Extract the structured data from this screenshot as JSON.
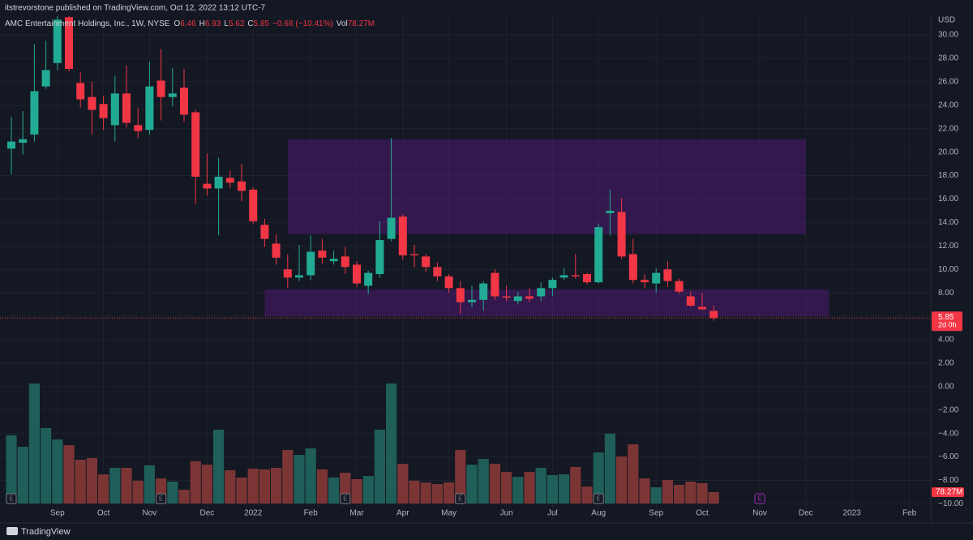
{
  "chart_data": {
    "type": "candlestick",
    "published": "itstrevorstone published on TradingView.com, Oct 12, 2022 13:12 UTC-7",
    "title": "AMC Entertainment Holdings, Inc., 1W, NYSE",
    "quote": {
      "o": "O",
      "h": "H",
      "l": "L",
      "c": "C",
      "change": "−0.68",
      "change_pct": "(−10.41%)",
      "vol": "Vol"
    },
    "currency": "USD",
    "countdown": "2d 0h",
    "brand": "TradingView",
    "categories": [
      null,
      null,
      null,
      null,
      "Sep",
      null,
      null,
      null,
      "Oct",
      null,
      null,
      null,
      "Nov",
      null,
      null,
      null,
      null,
      "Dec",
      null,
      null,
      null,
      "2022",
      null,
      null,
      null,
      null,
      "Feb",
      null,
      null,
      null,
      "Mar",
      null,
      null,
      null,
      "Apr",
      null,
      null,
      null,
      "May",
      null,
      null,
      null,
      null,
      "Jun",
      null,
      null,
      null,
      "Jul",
      null,
      null,
      null,
      "Aug",
      null,
      null,
      null,
      null,
      "Sep",
      null,
      null,
      null,
      "Oct",
      null,
      null,
      null,
      null,
      "Nov",
      null,
      null,
      null,
      "Dec",
      null,
      null,
      null,
      "2023",
      null,
      null,
      null,
      null,
      "Feb",
      null
    ],
    "open": [
      20.3,
      20.8,
      21.5,
      25.6,
      27.6,
      31.5,
      25.9,
      24.7,
      24.1,
      22.3,
      25.0,
      22.3,
      21.9,
      26.1,
      24.7,
      25.5,
      23.4,
      17.3,
      16.9,
      17.8,
      17.5,
      16.8,
      13.8,
      12.2,
      10.0,
      9.3,
      9.5,
      11.6,
      10.7,
      11.1,
      10.4,
      8.6,
      9.6,
      12.6,
      14.5,
      11.3,
      11.1,
      10.2,
      9.4,
      8.4,
      7.2,
      7.4,
      9.7,
      7.7,
      7.3,
      7.7,
      7.7,
      8.4,
      9.3,
      9.5,
      9.6,
      8.9,
      14.8,
      14.9,
      11.3,
      9.1,
      8.8,
      10.0,
      9.0,
      7.7,
      6.8,
      6.46,
      null,
      null,
      null,
      null,
      null,
      null,
      null,
      null,
      null,
      null,
      null,
      null,
      null,
      null,
      null,
      null,
      null,
      null
    ],
    "high": [
      23.0,
      23.5,
      29.2,
      29.5,
      31.6,
      31.6,
      26.8,
      26.0,
      24.8,
      26.5,
      27.4,
      23.8,
      27.7,
      28.8,
      27.2,
      27.1,
      23.6,
      19.9,
      19.5,
      18.4,
      19.0,
      17.0,
      14.3,
      13.0,
      11.3,
      12.1,
      12.9,
      12.6,
      11.6,
      11.9,
      10.7,
      9.9,
      14.1,
      21.2,
      14.7,
      12.1,
      11.3,
      10.6,
      9.6,
      9.0,
      8.6,
      9.0,
      10.0,
      8.6,
      8.1,
      8.4,
      8.9,
      9.3,
      10.1,
      11.3,
      9.7,
      13.9,
      16.8,
      16.1,
      12.6,
      9.6,
      10.1,
      10.7,
      9.2,
      8.1,
      8.0,
      6.93,
      null,
      null,
      null,
      null,
      null,
      null,
      null,
      null,
      null,
      null,
      null,
      null,
      null,
      null,
      null,
      null,
      null,
      null
    ],
    "low": [
      18.1,
      19.8,
      20.9,
      25.4,
      27.0,
      26.9,
      23.8,
      21.5,
      21.9,
      20.9,
      22.1,
      21.2,
      21.5,
      22.7,
      23.9,
      22.6,
      15.6,
      16.3,
      12.9,
      16.9,
      15.8,
      13.9,
      11.9,
      10.4,
      8.4,
      9.0,
      9.1,
      10.5,
      10.4,
      9.6,
      8.5,
      7.9,
      9.3,
      12.4,
      10.8,
      10.2,
      9.8,
      9.0,
      8.0,
      6.2,
      6.8,
      6.5,
      7.4,
      7.3,
      7.0,
      7.2,
      7.3,
      7.7,
      9.1,
      9.2,
      8.7,
      8.8,
      12.9,
      10.9,
      8.8,
      8.4,
      8.0,
      8.5,
      7.9,
      6.8,
      6.5,
      5.62,
      null,
      null,
      null,
      null,
      null,
      null,
      null,
      null,
      null,
      null,
      null,
      null,
      null,
      null,
      null,
      null,
      null,
      null
    ],
    "close": [
      20.9,
      21.1,
      25.2,
      27.0,
      31.3,
      27.1,
      24.5,
      23.6,
      22.9,
      25.0,
      22.5,
      21.8,
      25.6,
      24.7,
      25.0,
      23.2,
      17.9,
      16.9,
      17.9,
      17.4,
      16.7,
      14.1,
      12.6,
      11.0,
      9.3,
      9.5,
      11.5,
      11.0,
      10.9,
      10.2,
      8.8,
      9.7,
      12.5,
      14.4,
      11.2,
      11.2,
      10.2,
      9.4,
      8.4,
      7.2,
      7.4,
      8.8,
      7.7,
      7.6,
      7.7,
      7.5,
      8.4,
      9.1,
      9.5,
      9.4,
      8.9,
      13.6,
      15.0,
      11.1,
      9.1,
      8.9,
      9.7,
      9.0,
      8.1,
      6.9,
      6.6,
      5.85,
      null,
      null,
      null,
      null,
      null,
      null,
      null,
      null,
      null,
      null,
      null,
      null,
      null,
      null,
      null,
      null,
      null,
      null
    ],
    "volume": {
      "values": [
        470,
        391,
        827,
        520,
        442,
        402,
        302,
        313,
        201,
        246,
        246,
        157,
        263,
        173,
        151,
        95,
        291,
        268,
        509,
        229,
        179,
        240,
        235,
        246,
        369,
        335,
        380,
        235,
        179,
        212,
        168,
        190,
        509,
        827,
        274,
        157,
        145,
        134,
        145,
        369,
        268,
        307,
        274,
        218,
        184,
        218,
        246,
        196,
        201,
        252,
        117,
        352,
        481,
        324,
        408,
        173,
        112,
        162,
        129,
        151,
        140,
        78.27,
        null,
        null,
        null,
        null,
        null,
        null,
        null,
        null,
        null,
        null,
        null,
        null,
        null,
        null,
        null,
        null,
        null,
        null
      ],
      "last_label": "78.27M"
    },
    "zones": [
      {
        "from": 24,
        "to": 69,
        "top": 21.1,
        "bottom": 13.0
      },
      {
        "from": 22,
        "to": 71,
        "top": 8.3,
        "bottom": 6.0
      }
    ],
    "events": {
      "label": "E",
      "weeks": [
        0,
        13,
        29,
        39,
        51,
        65
      ]
    },
    "ylim": [
      -11.63,
      31.73
    ],
    "yticks": [
      {
        "value": 30,
        "label": "30.00"
      },
      {
        "value": 28,
        "label": "28.00"
      },
      {
        "value": 26,
        "label": "26.00"
      },
      {
        "value": 24,
        "label": "24.00"
      },
      {
        "value": 22,
        "label": "22.00"
      },
      {
        "value": 20,
        "label": "20.00"
      },
      {
        "value": 18,
        "label": "18.00"
      },
      {
        "value": 16,
        "label": "16.00"
      },
      {
        "value": 14,
        "label": "14.00"
      },
      {
        "value": 12,
        "label": "12.00"
      },
      {
        "value": 10,
        "label": "10.00"
      },
      {
        "value": 8,
        "label": "8.00"
      },
      {
        "value": 6,
        "label": "6.00"
      },
      {
        "value": 4,
        "label": "4.00"
      },
      {
        "value": 2,
        "label": "2.00"
      },
      {
        "value": 0,
        "label": "0.00"
      },
      {
        "value": -2,
        "label": "−2.00"
      },
      {
        "value": -4,
        "label": "−4.00"
      },
      {
        "value": -6,
        "label": "−6.00"
      },
      {
        "value": -8,
        "label": "−8.00"
      },
      {
        "value": -10,
        "label": "−10.00"
      }
    ],
    "grid": true,
    "colors": {
      "up": "#22ab94",
      "down": "#f23645",
      "volume_up": "#1f5e59",
      "volume_down": "#7c3535",
      "zone": "#6a1b9a",
      "event_future": "#9c27b0"
    }
  }
}
